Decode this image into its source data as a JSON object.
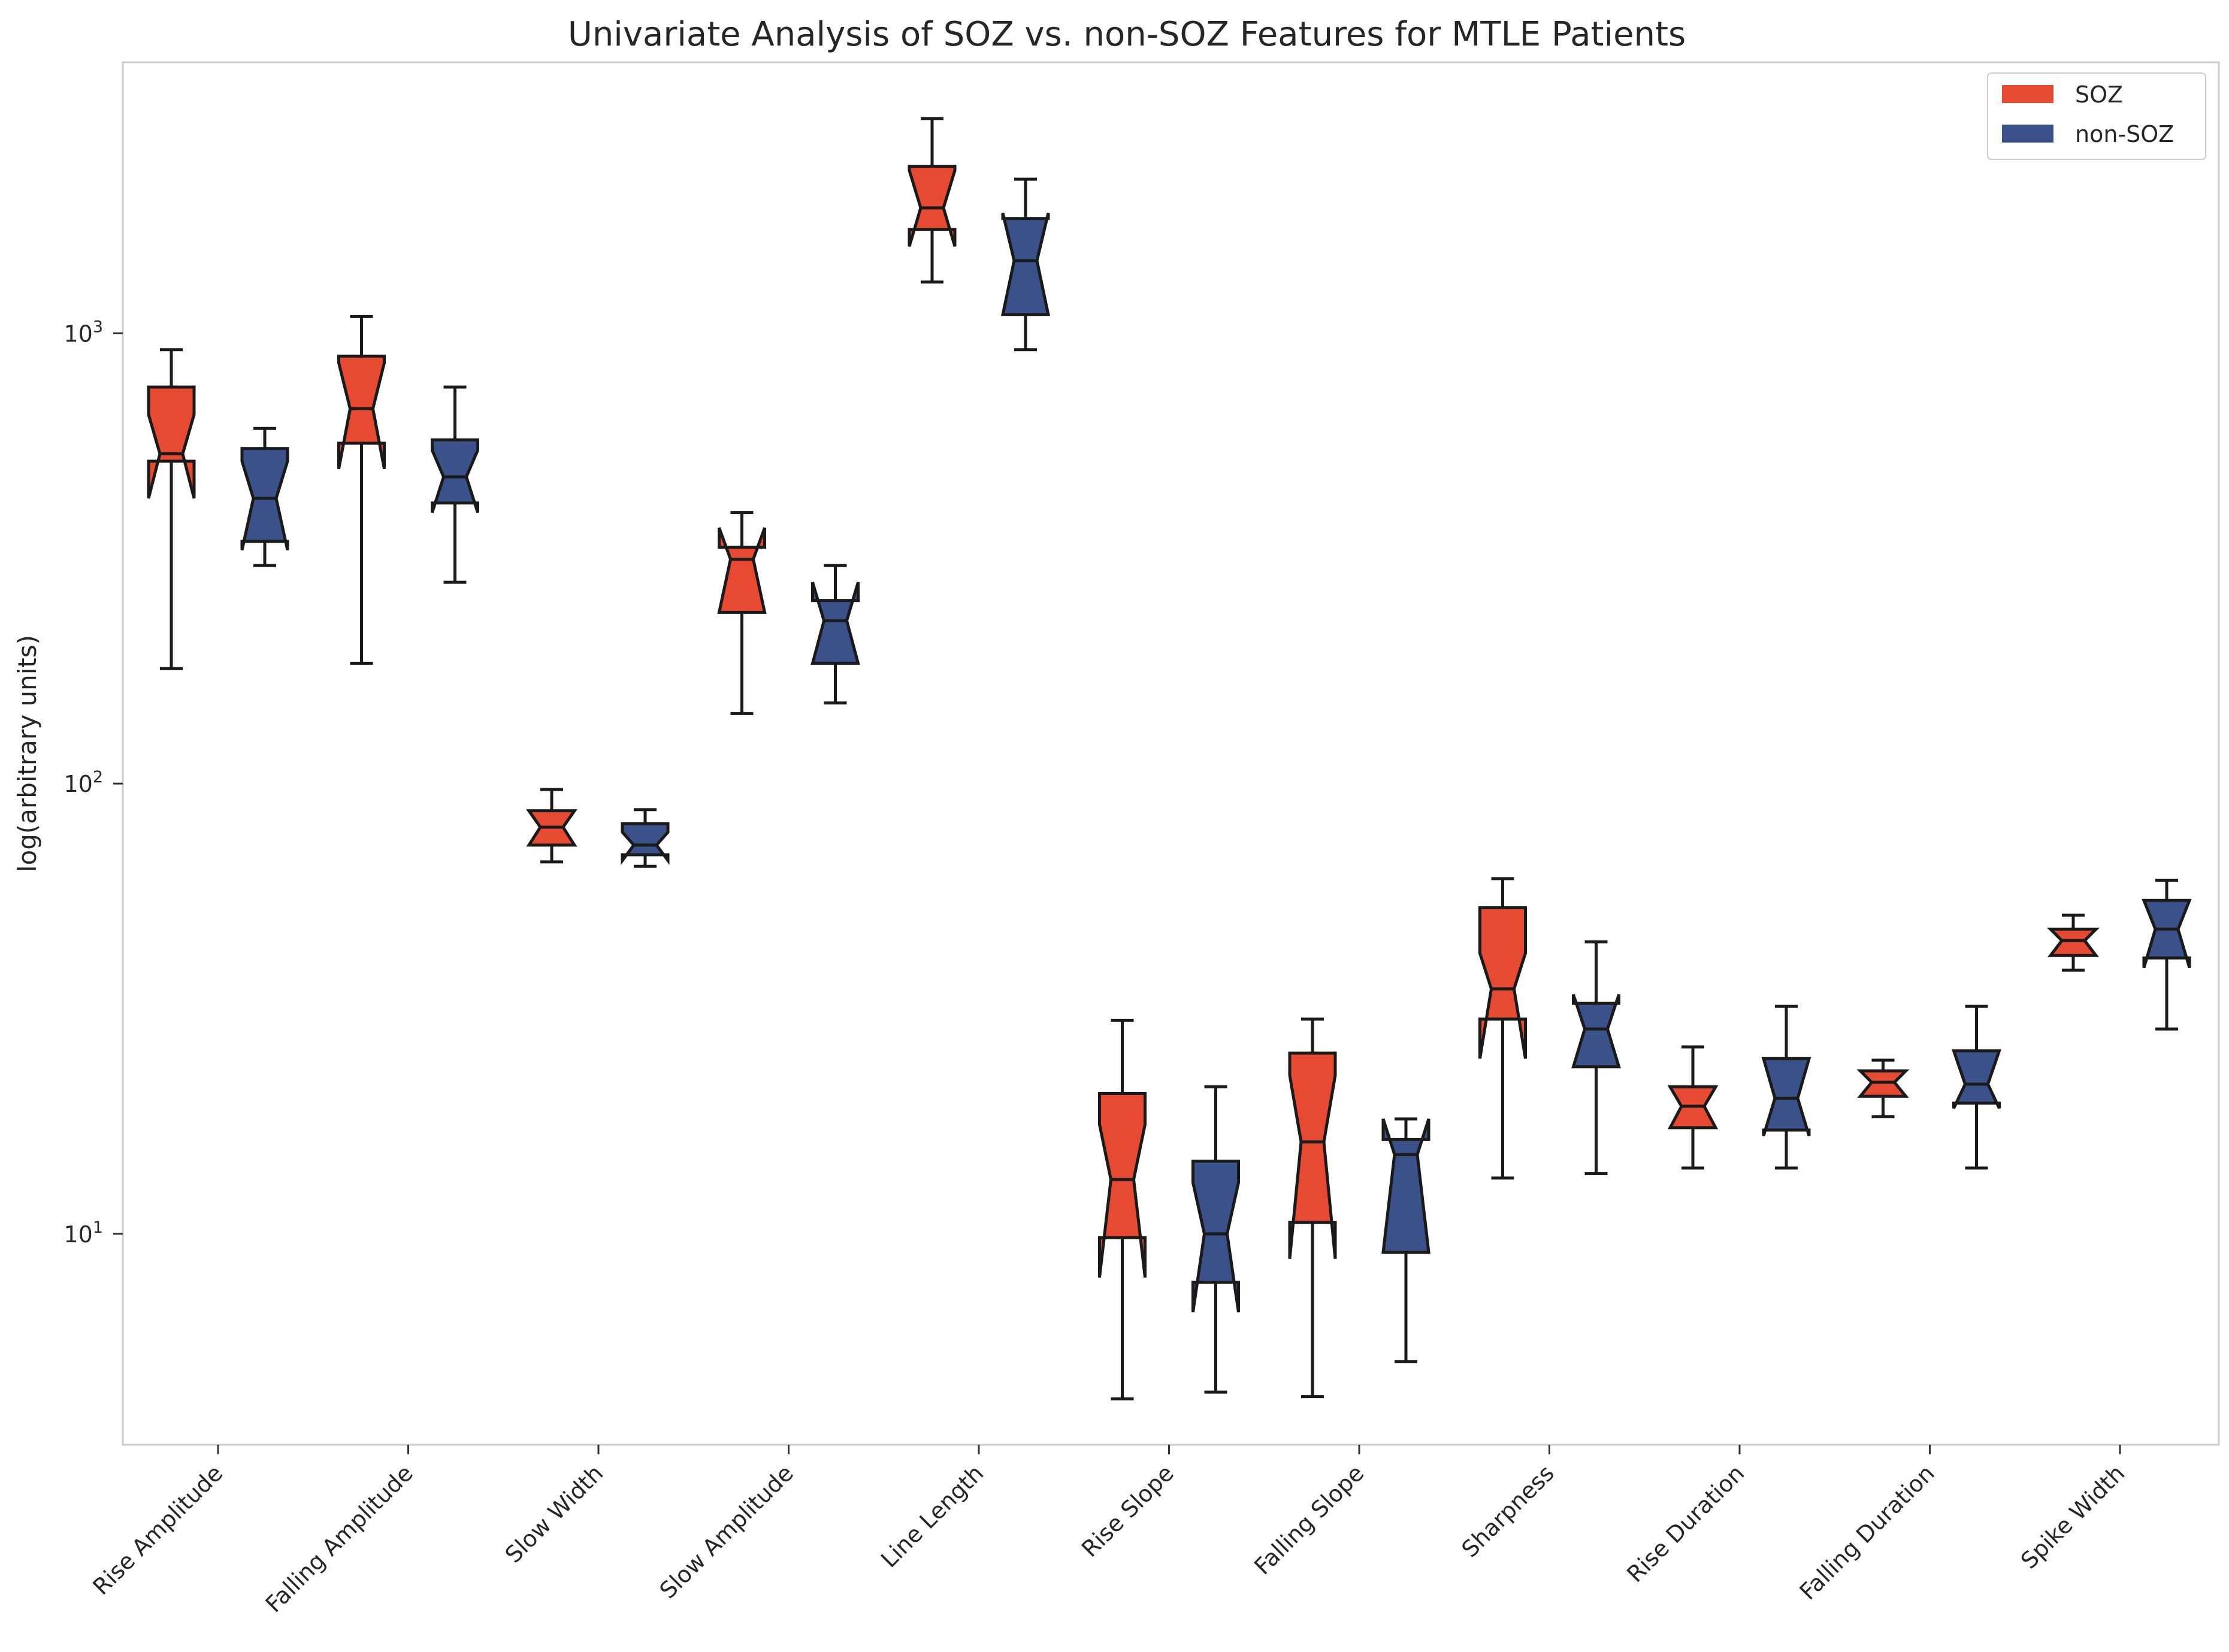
{
  "chart_data": {
    "type": "boxplot",
    "title": "Univariate Analysis of SOZ vs. non-SOZ Features for MTLE Patients",
    "xlabel": "",
    "ylabel": "log(arbitrary units)",
    "yscale": "log",
    "ylim": [
      3.4,
      4000
    ],
    "yticks": [
      {
        "value": 10,
        "base": "10",
        "exp": "1"
      },
      {
        "value": 100,
        "base": "10",
        "exp": "2"
      },
      {
        "value": 1000,
        "base": "10",
        "exp": "3"
      }
    ],
    "grid": false,
    "legend": {
      "position": "top-right"
    },
    "categories": [
      "Rise Amplitude",
      "Falling Amplitude",
      "Slow Width",
      "Slow Amplitude",
      "Line Length",
      "Rise Slope",
      "Falling Slope",
      "Sharpness",
      "Rise Duration",
      "Falling Duration",
      "Spike Width"
    ],
    "series": [
      {
        "name": "SOZ",
        "color": "#e64a33",
        "boxes": [
          {
            "whislo": 180,
            "notch_lo": 430,
            "q1": 520,
            "med": 540,
            "q3": 760,
            "notch_hi": 660,
            "whishi": 920
          },
          {
            "whislo": 185,
            "notch_lo": 500,
            "q1": 570,
            "med": 680,
            "q3": 890,
            "notch_hi": 860,
            "whishi": 1090
          },
          {
            "whislo": 67,
            "notch_lo": 73,
            "q1": 73,
            "med": 80,
            "q3": 87,
            "notch_hi": 87,
            "whishi": 97
          },
          {
            "whislo": 143,
            "notch_lo": 240,
            "q1": 240,
            "med": 315,
            "q3": 335,
            "notch_hi": 370,
            "whishi": 400
          },
          {
            "whislo": 1300,
            "notch_lo": 1560,
            "q1": 1700,
            "med": 1900,
            "q3": 2350,
            "notch_hi": 2300,
            "whishi": 3000
          },
          {
            "whislo": 4.3,
            "notch_lo": 8.0,
            "q1": 9.8,
            "med": 13.2,
            "q3": 20.5,
            "notch_hi": 17.5,
            "whishi": 29.8
          },
          {
            "whislo": 4.35,
            "notch_lo": 8.8,
            "q1": 10.6,
            "med": 16.0,
            "q3": 25.2,
            "notch_hi": 22.5,
            "whishi": 30.0
          },
          {
            "whislo": 13.3,
            "notch_lo": 24.5,
            "q1": 30.0,
            "med": 35.0,
            "q3": 53.0,
            "notch_hi": 42.0,
            "whishi": 61.5
          },
          {
            "whislo": 14.0,
            "notch_lo": 17.2,
            "q1": 17.2,
            "med": 19.2,
            "q3": 21.2,
            "notch_hi": 21.2,
            "whishi": 26.0
          },
          {
            "whislo": 18.2,
            "notch_lo": 20.2,
            "q1": 20.2,
            "med": 21.7,
            "q3": 23.0,
            "notch_hi": 23.0,
            "whishi": 24.3
          },
          {
            "whislo": 38.5,
            "notch_lo": 41.5,
            "q1": 41.5,
            "med": 44.8,
            "q3": 47.5,
            "notch_hi": 47.5,
            "whishi": 51.0
          }
        ]
      },
      {
        "name": "non-SOZ",
        "color": "#3a5289",
        "boxes": [
          {
            "whislo": 305,
            "notch_lo": 330,
            "q1": 345,
            "med": 430,
            "q3": 555,
            "notch_hi": 520,
            "whishi": 615
          },
          {
            "whislo": 280,
            "notch_lo": 400,
            "q1": 420,
            "med": 480,
            "q3": 580,
            "notch_hi": 550,
            "whishi": 760
          },
          {
            "whislo": 65.5,
            "notch_lo": 67.5,
            "q1": 69.5,
            "med": 73.0,
            "q3": 81.5,
            "notch_hi": 78.0,
            "whishi": 87.5
          },
          {
            "whislo": 151,
            "notch_lo": 185,
            "q1": 185,
            "med": 230,
            "q3": 255,
            "notch_hi": 280,
            "whishi": 305
          },
          {
            "whislo": 920,
            "notch_lo": 1100,
            "q1": 1100,
            "med": 1450,
            "q3": 1800,
            "notch_hi": 1850,
            "whishi": 2200
          },
          {
            "whislo": 4.45,
            "notch_lo": 6.7,
            "q1": 7.8,
            "med": 10.0,
            "q3": 14.5,
            "notch_hi": 13.0,
            "whishi": 21.2
          },
          {
            "whislo": 5.2,
            "notch_lo": 9.1,
            "q1": 9.1,
            "med": 15.0,
            "q3": 16.2,
            "notch_hi": 18.0,
            "whishi": 18.0
          },
          {
            "whislo": 13.6,
            "notch_lo": 23.5,
            "q1": 23.5,
            "med": 28.5,
            "q3": 32.5,
            "notch_hi": 34.0,
            "whishi": 44.5
          },
          {
            "whislo": 14.0,
            "notch_lo": 16.5,
            "q1": 17.0,
            "med": 20.0,
            "q3": 24.5,
            "notch_hi": 24.5,
            "whishi": 32.0
          },
          {
            "whislo": 14.0,
            "notch_lo": 19.0,
            "q1": 19.5,
            "med": 21.5,
            "q3": 25.5,
            "notch_hi": 25.5,
            "whishi": 32.0
          },
          {
            "whislo": 28.5,
            "notch_lo": 39.0,
            "q1": 41.0,
            "med": 47.5,
            "q3": 55.0,
            "notch_hi": 55.0,
            "whishi": 61.0
          }
        ]
      }
    ]
  }
}
